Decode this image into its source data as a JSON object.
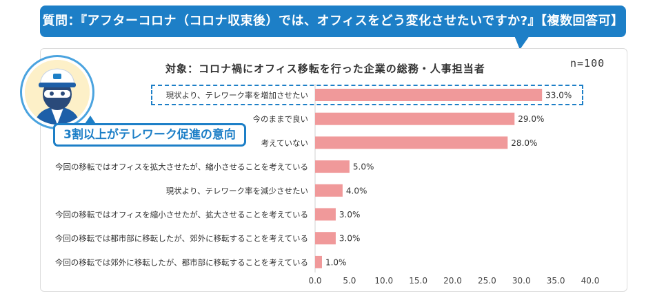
{
  "banner": {
    "text": "質問：『アフターコロナ（コロナ収束後）では、オフィスをどう変化させたいですか?』【複数回答可】"
  },
  "callout": {
    "text": "3割以上がテレワーク促進の意向"
  },
  "colors": {
    "banner": "#1d7fc7",
    "bar": "#f0999a"
  },
  "chart_data": {
    "type": "bar",
    "orientation": "horizontal",
    "title": "対象：コロナ禍にオフィス移転を行った企業の総務・人事担当者",
    "sample_size": "n=100",
    "categories": [
      "現状より、テレワーク率を増加させたい",
      "今のままで良い",
      "考えていない",
      "今回の移転ではオフィスを拡大させたが、縮小させることを考えている",
      "現状より、テレワーク率を減少させたい",
      "今回の移転ではオフィスを縮小させたが、拡大させることを考えている",
      "今回の移転では都市部に移転したが、郊外に移転することを考えている",
      "今回の移転では郊外に移転したが、都市部に移転することを考えている"
    ],
    "values": [
      33.0,
      29.0,
      28.0,
      5.0,
      4.0,
      3.0,
      3.0,
      1.0
    ],
    "value_labels": [
      "33.0%",
      "29.0%",
      "28.0%",
      "5.0%",
      "4.0%",
      "3.0%",
      "3.0%",
      "1.0%"
    ],
    "xlim": [
      0,
      40
    ],
    "xticks": [
      "0.0",
      "5.0",
      "10.0",
      "15.0",
      "20.0",
      "25.0",
      "30.0",
      "35.0",
      "40.0"
    ],
    "highlighted_category": 0
  }
}
